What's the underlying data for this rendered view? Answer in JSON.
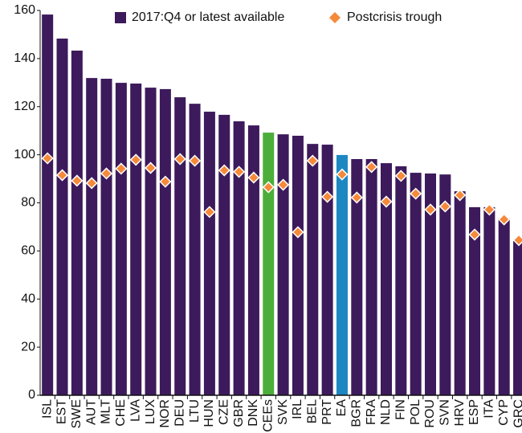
{
  "chart_data": {
    "type": "bar",
    "categories": [
      "ISL",
      "EST",
      "SWE",
      "AUT",
      "MLT",
      "CHE",
      "LVA",
      "LUX",
      "NOR",
      "DEU",
      "LTU",
      "HUN",
      "CZE",
      "GBR",
      "DNK",
      "CEEs",
      "SVK",
      "IRL",
      "BEL",
      "PRT",
      "EA",
      "BGR",
      "FRA",
      "NLD",
      "FIN",
      "POL",
      "ROU",
      "SVN",
      "HRV",
      "ESP",
      "ITA",
      "CYP",
      "GRC"
    ],
    "series": [
      {
        "name": "2017:Q4 or latest available",
        "color": "#3c1a5b",
        "marker": "bar",
        "colors": [
          "#3c1a5b",
          "#3c1a5b",
          "#3c1a5b",
          "#3c1a5b",
          "#3c1a5b",
          "#3c1a5b",
          "#3c1a5b",
          "#3c1a5b",
          "#3c1a5b",
          "#3c1a5b",
          "#3c1a5b",
          "#3c1a5b",
          "#3c1a5b",
          "#3c1a5b",
          "#3c1a5b",
          "#4cae3a",
          "#3c1a5b",
          "#3c1a5b",
          "#3c1a5b",
          "#3c1a5b",
          "#1d87c2",
          "#3c1a5b",
          "#3c1a5b",
          "#3c1a5b",
          "#3c1a5b",
          "#3c1a5b",
          "#3c1a5b",
          "#3c1a5b",
          "#3c1a5b",
          "#3c1a5b",
          "#3c1a5b",
          "#3c1a5b",
          "#3c1a5b"
        ],
        "values": [
          158.3,
          148.3,
          143.3,
          131.9,
          131.6,
          129.9,
          129.6,
          127.9,
          127.3,
          123.9,
          121.2,
          117.9,
          116.6,
          113.9,
          112.2,
          109.2,
          108.5,
          107.9,
          104.5,
          104.2,
          99.9,
          98.2,
          98.2,
          96.5,
          95.2,
          92.5,
          92.2,
          91.8,
          84.8,
          78.2,
          78.2,
          73.5,
          64.1
        ]
      },
      {
        "name": "Postcrisis trough",
        "color": "#f58a3b",
        "marker": "diamond",
        "values": [
          98.5,
          91.5,
          89.2,
          88.2,
          92.2,
          94.2,
          97.9,
          94.5,
          88.8,
          98.2,
          97.5,
          76.2,
          93.5,
          92.9,
          90.5,
          86.5,
          87.5,
          67.8,
          97.5,
          82.5,
          91.8,
          82.2,
          94.9,
          80.5,
          91.2,
          83.8,
          77.2,
          78.5,
          83.2,
          66.8,
          77.2,
          73.1,
          64.5
        ]
      }
    ],
    "ylim": [
      0,
      160
    ],
    "yticks": [
      0,
      20,
      40,
      60,
      80,
      100,
      120,
      140,
      160
    ],
    "grid": false,
    "legend": "top"
  }
}
